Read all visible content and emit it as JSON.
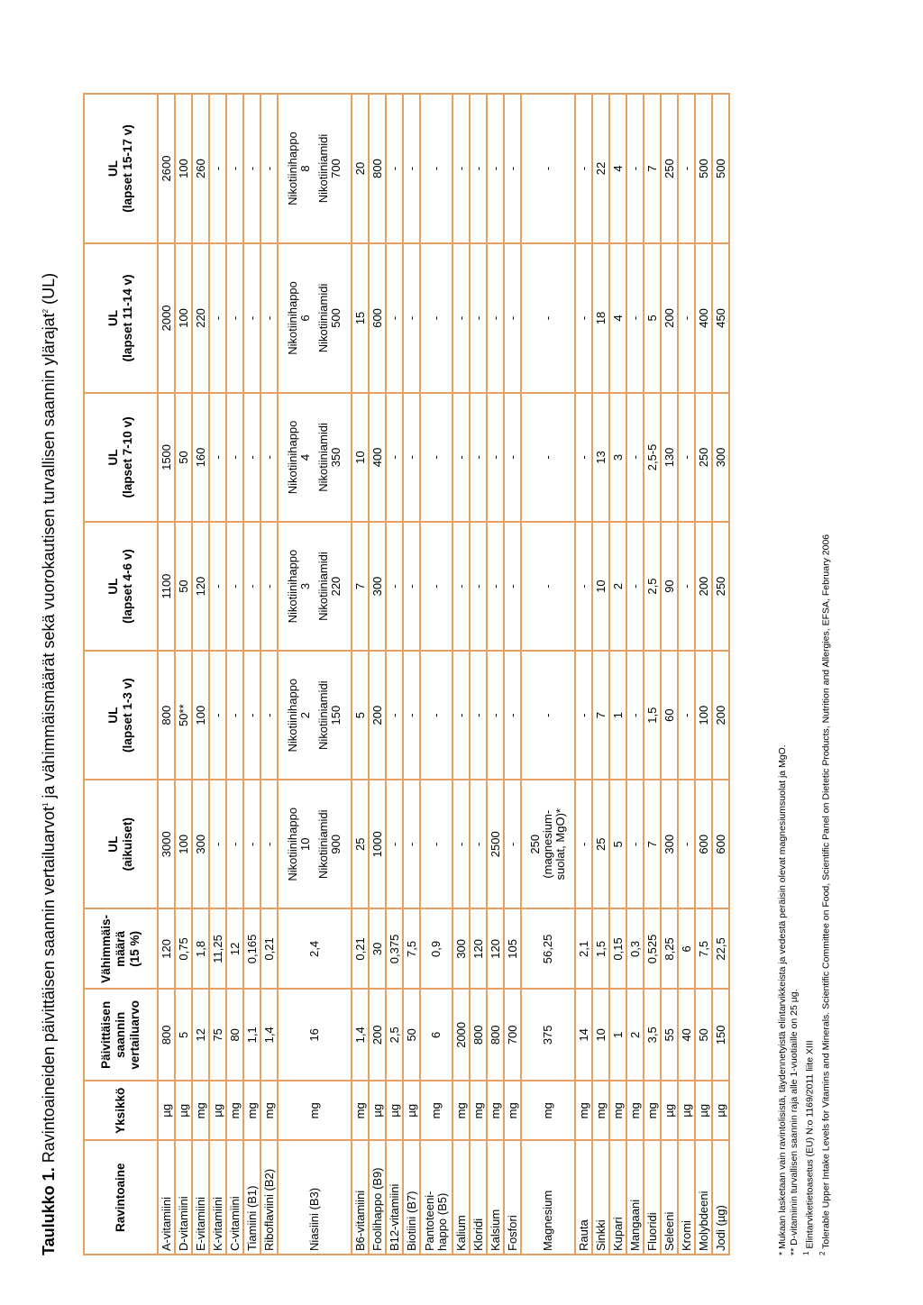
{
  "title": {
    "label": "Taulukko 1.",
    "part1": " Ravintoaineiden päivittäisen saannin vertailuarvot",
    "sup1": "1",
    "part2": " ja vähimmäismäärät sekä vuorokautisen turvallisen saannin ylärajat",
    "sup2": "2",
    "part3": " (UL)"
  },
  "headers": [
    [
      "Ravintoaine"
    ],
    [
      "Yksikkö"
    ],
    [
      "Päivittäisen",
      "saannin",
      "vertailuarvo"
    ],
    [
      "Vähimmäis-",
      "määrä",
      "(15 %)"
    ],
    [
      "UL",
      "(aikuiset)"
    ],
    [
      "UL",
      "(lapset 1-3 v)"
    ],
    [
      "UL",
      "(lapset 4-6 v)"
    ],
    [
      "UL",
      "(lapset 7-10 v)"
    ],
    [
      "UL",
      "(lapset 11-14 v)"
    ],
    [
      "UL",
      "(lapset 15-17 v)"
    ]
  ],
  "rows": [
    [
      "A-vitamiini",
      "µg",
      "800",
      "120",
      "3000",
      "800",
      "1100",
      "1500",
      "2000",
      "2600"
    ],
    [
      "D-vitamiini",
      "µg",
      "5",
      "0,75",
      "100",
      "50**",
      "50",
      "50",
      "100",
      "100"
    ],
    [
      "E-vitamiini",
      "mg",
      "12",
      "1,8",
      "300",
      "100",
      "120",
      "160",
      "220",
      "260"
    ],
    [
      "K-vitamiini",
      "µg",
      "75",
      "11,25",
      "-",
      "-",
      "-",
      "-",
      "-",
      "-"
    ],
    [
      "C-vitamiini",
      "mg",
      "80",
      "12",
      "-",
      "-",
      "-",
      "-",
      "-",
      "-"
    ],
    [
      "Tiamiini (B1)",
      "mg",
      "1,1",
      "0,165",
      "-",
      "-",
      "-",
      "-",
      "-",
      "-"
    ],
    [
      "Riboflaviini (B2)",
      "mg",
      "1,4",
      "0,21",
      "-",
      "-",
      "-",
      "-",
      "-",
      "-"
    ],
    [
      "Niasiini (B3)",
      "mg",
      "16",
      "2,4",
      "Nikotiinihappo|10|Nikotiiniamidi|900",
      "Nikotiinihappo|2|Nikotiiniamidi|150",
      "Nikotiinihappo|3|Nikotiiniamidi|220",
      "Nikotiinihappo|4|Nikotiiniamidi|350",
      "Nikotiinihappo|6|Nikotiiniamidi|500",
      "Nikotiinihappo|8|Nikotiiniamidi|700"
    ],
    [
      "B6-vitamiini",
      "mg",
      "1,4",
      "0,21",
      "25",
      "5",
      "7",
      "10",
      "15",
      "20"
    ],
    [
      "Foolihappo (B9)",
      "µg",
      "200",
      "30",
      "1000",
      "200",
      "300",
      "400",
      "600",
      "800"
    ],
    [
      "B12-vitamiini",
      "µg",
      "2,5",
      "0,375",
      "-",
      "-",
      "-",
      "-",
      "-",
      "-"
    ],
    [
      "Biotiini (B7)",
      "µg",
      "50",
      "7,5",
      "-",
      "-",
      "-",
      "-",
      "-",
      "-"
    ],
    [
      "Pantoteeni-|happo (B5)",
      "mg",
      "6",
      "0,9",
      "-",
      "-",
      "-",
      "-",
      "-",
      "-"
    ],
    [
      "Kalium",
      "mg",
      "2000",
      "300",
      "-",
      "-",
      "-",
      "-",
      "-",
      "-"
    ],
    [
      "Kloridi",
      "mg",
      "800",
      "120",
      "-",
      "-",
      "-",
      "-",
      "-",
      "-"
    ],
    [
      "Kalsium",
      "mg",
      "800",
      "120",
      "2500",
      "-",
      "-",
      "-",
      "-",
      "-"
    ],
    [
      "Fosfori",
      "mg",
      "700",
      "105",
      "-",
      "-",
      "-",
      "-",
      "-",
      "-"
    ],
    [
      "Magnesium",
      "mg",
      "375",
      "56,25",
      "250|(magnesium-|suolat, MgO)*",
      "-",
      "-",
      "-",
      "-",
      "-"
    ],
    [
      "Rauta",
      "mg",
      "14",
      "2,1",
      "-",
      "-",
      "-",
      "-",
      "-",
      "-"
    ],
    [
      "Sinkki",
      "mg",
      "10",
      "1,5",
      "25",
      "7",
      "10",
      "13",
      "18",
      "22"
    ],
    [
      "Kupari",
      "mg",
      "1",
      "0,15",
      "5",
      "1",
      "2",
      "3",
      "4",
      "4"
    ],
    [
      "Mangaani",
      "mg",
      "2",
      "0,3",
      "-",
      "-",
      "-",
      "-",
      "-",
      "-"
    ],
    [
      "Fluoridi",
      "mg",
      "3,5",
      "0,525",
      "7",
      "1,5",
      "2,5",
      "2,5-5",
      "5",
      "7"
    ],
    [
      "Seleeni",
      "µg",
      "55",
      "8,25",
      "300",
      "60",
      "90",
      "130",
      "200",
      "250"
    ],
    [
      "Kromi",
      "µg",
      "40",
      "6",
      "-",
      "-",
      "-",
      "-",
      "-",
      "-"
    ],
    [
      "Molybdeeni",
      "µg",
      "50",
      "7,5",
      "600",
      "100",
      "200",
      "250",
      "400",
      "500"
    ],
    [
      "Jodi (µg)",
      "µg",
      "150",
      "22,5",
      "600",
      "200",
      "250",
      "300",
      "450",
      "500"
    ]
  ],
  "notes": {
    "n1": "* Mukaan lasketaan vain ravintolisistä, täydennetyistä elintarvikkeista ja vedestä peräisin olevat magnesiumsuolat ja MgO.",
    "n2": "** D-vitamiinin turvallisen saannin raja alle 1-vuotiaille on 25 µg.",
    "n3_sup": "1",
    "n3": " Elintarviketietoasetus (EU) N:o 1169/2011 liite XIII",
    "n4_sup": "2",
    "n4": " Tolerable Upper Intake Levels for Vitamins and Minerals. Scientific Committee on Food, Scientific Panel on Dietetic Products, Nutrition and Allergies, EFSA, February 2006"
  }
}
